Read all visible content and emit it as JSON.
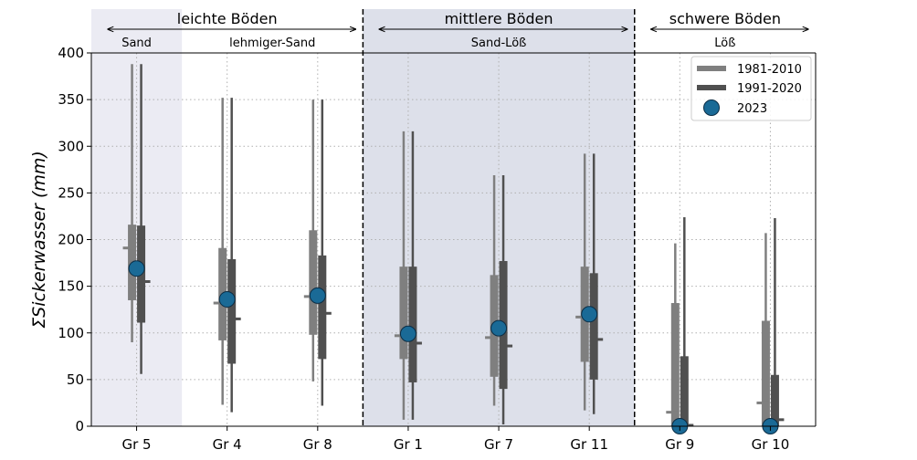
{
  "chart_data": {
    "type": "boxplot",
    "ylabel": "ΣSickerwasser (mm)",
    "ylim": [
      0,
      400
    ],
    "yticks": [
      0,
      50,
      100,
      150,
      200,
      250,
      300,
      350,
      400
    ],
    "grid": true,
    "legend_position": "top-right",
    "legend": {
      "p1": "1981-2010",
      "p2": "1991-2020",
      "marker": "2023"
    },
    "colors": {
      "p1": "#7f7f7f",
      "p2": "#505050",
      "marker": "#1a6a96",
      "band_light": "#ebebf3",
      "band_mid": "#dde0ea"
    },
    "groups": [
      {
        "label": "leichte Böden",
        "from": 0,
        "to": 2,
        "highlight": "light"
      },
      {
        "label": "mittlere Böden",
        "from": 3,
        "to": 5,
        "highlight": "mid"
      },
      {
        "label": "schwere Böden",
        "from": 6,
        "to": 7,
        "highlight": "none"
      }
    ],
    "subgroups": [
      {
        "label": "Sand",
        "from": 0,
        "to": 0
      },
      {
        "label": "lehmiger-Sand",
        "from": 1,
        "to": 2
      },
      {
        "label": "Sand-Löß",
        "from": 3,
        "to": 5
      },
      {
        "label": "Löß",
        "from": 6,
        "to": 7
      }
    ],
    "categories": [
      "Gr 5",
      "Gr 4",
      "Gr 8",
      "Gr 1",
      "Gr 7",
      "Gr 11",
      "Gr 9",
      "Gr 10"
    ],
    "series": [
      {
        "name": "1981-2010",
        "whisker_low": [
          90,
          23,
          48,
          7,
          22,
          17,
          0,
          0
        ],
        "q1": [
          135,
          92,
          98,
          72,
          53,
          69,
          0,
          0
        ],
        "median": [
          191,
          132,
          139,
          97,
          95,
          117,
          15,
          25
        ],
        "q3": [
          216,
          191,
          210,
          171,
          162,
          171,
          132,
          113
        ],
        "whisker_high": [
          388,
          352,
          350,
          316,
          269,
          292,
          196,
          207
        ]
      },
      {
        "name": "1991-2020",
        "whisker_low": [
          56,
          15,
          22,
          7,
          2,
          13,
          0,
          0
        ],
        "q1": [
          111,
          67,
          72,
          47,
          40,
          50,
          0,
          0
        ],
        "median": [
          155,
          115,
          121,
          89,
          86,
          93,
          1,
          7
        ],
        "q3": [
          215,
          179,
          183,
          171,
          177,
          164,
          75,
          55
        ],
        "whisker_high": [
          388,
          352,
          350,
          316,
          269,
          292,
          224,
          223
        ]
      }
    ],
    "marker_series": {
      "name": "2023",
      "values": [
        169,
        136,
        140,
        99,
        105,
        120,
        0,
        0
      ]
    }
  }
}
